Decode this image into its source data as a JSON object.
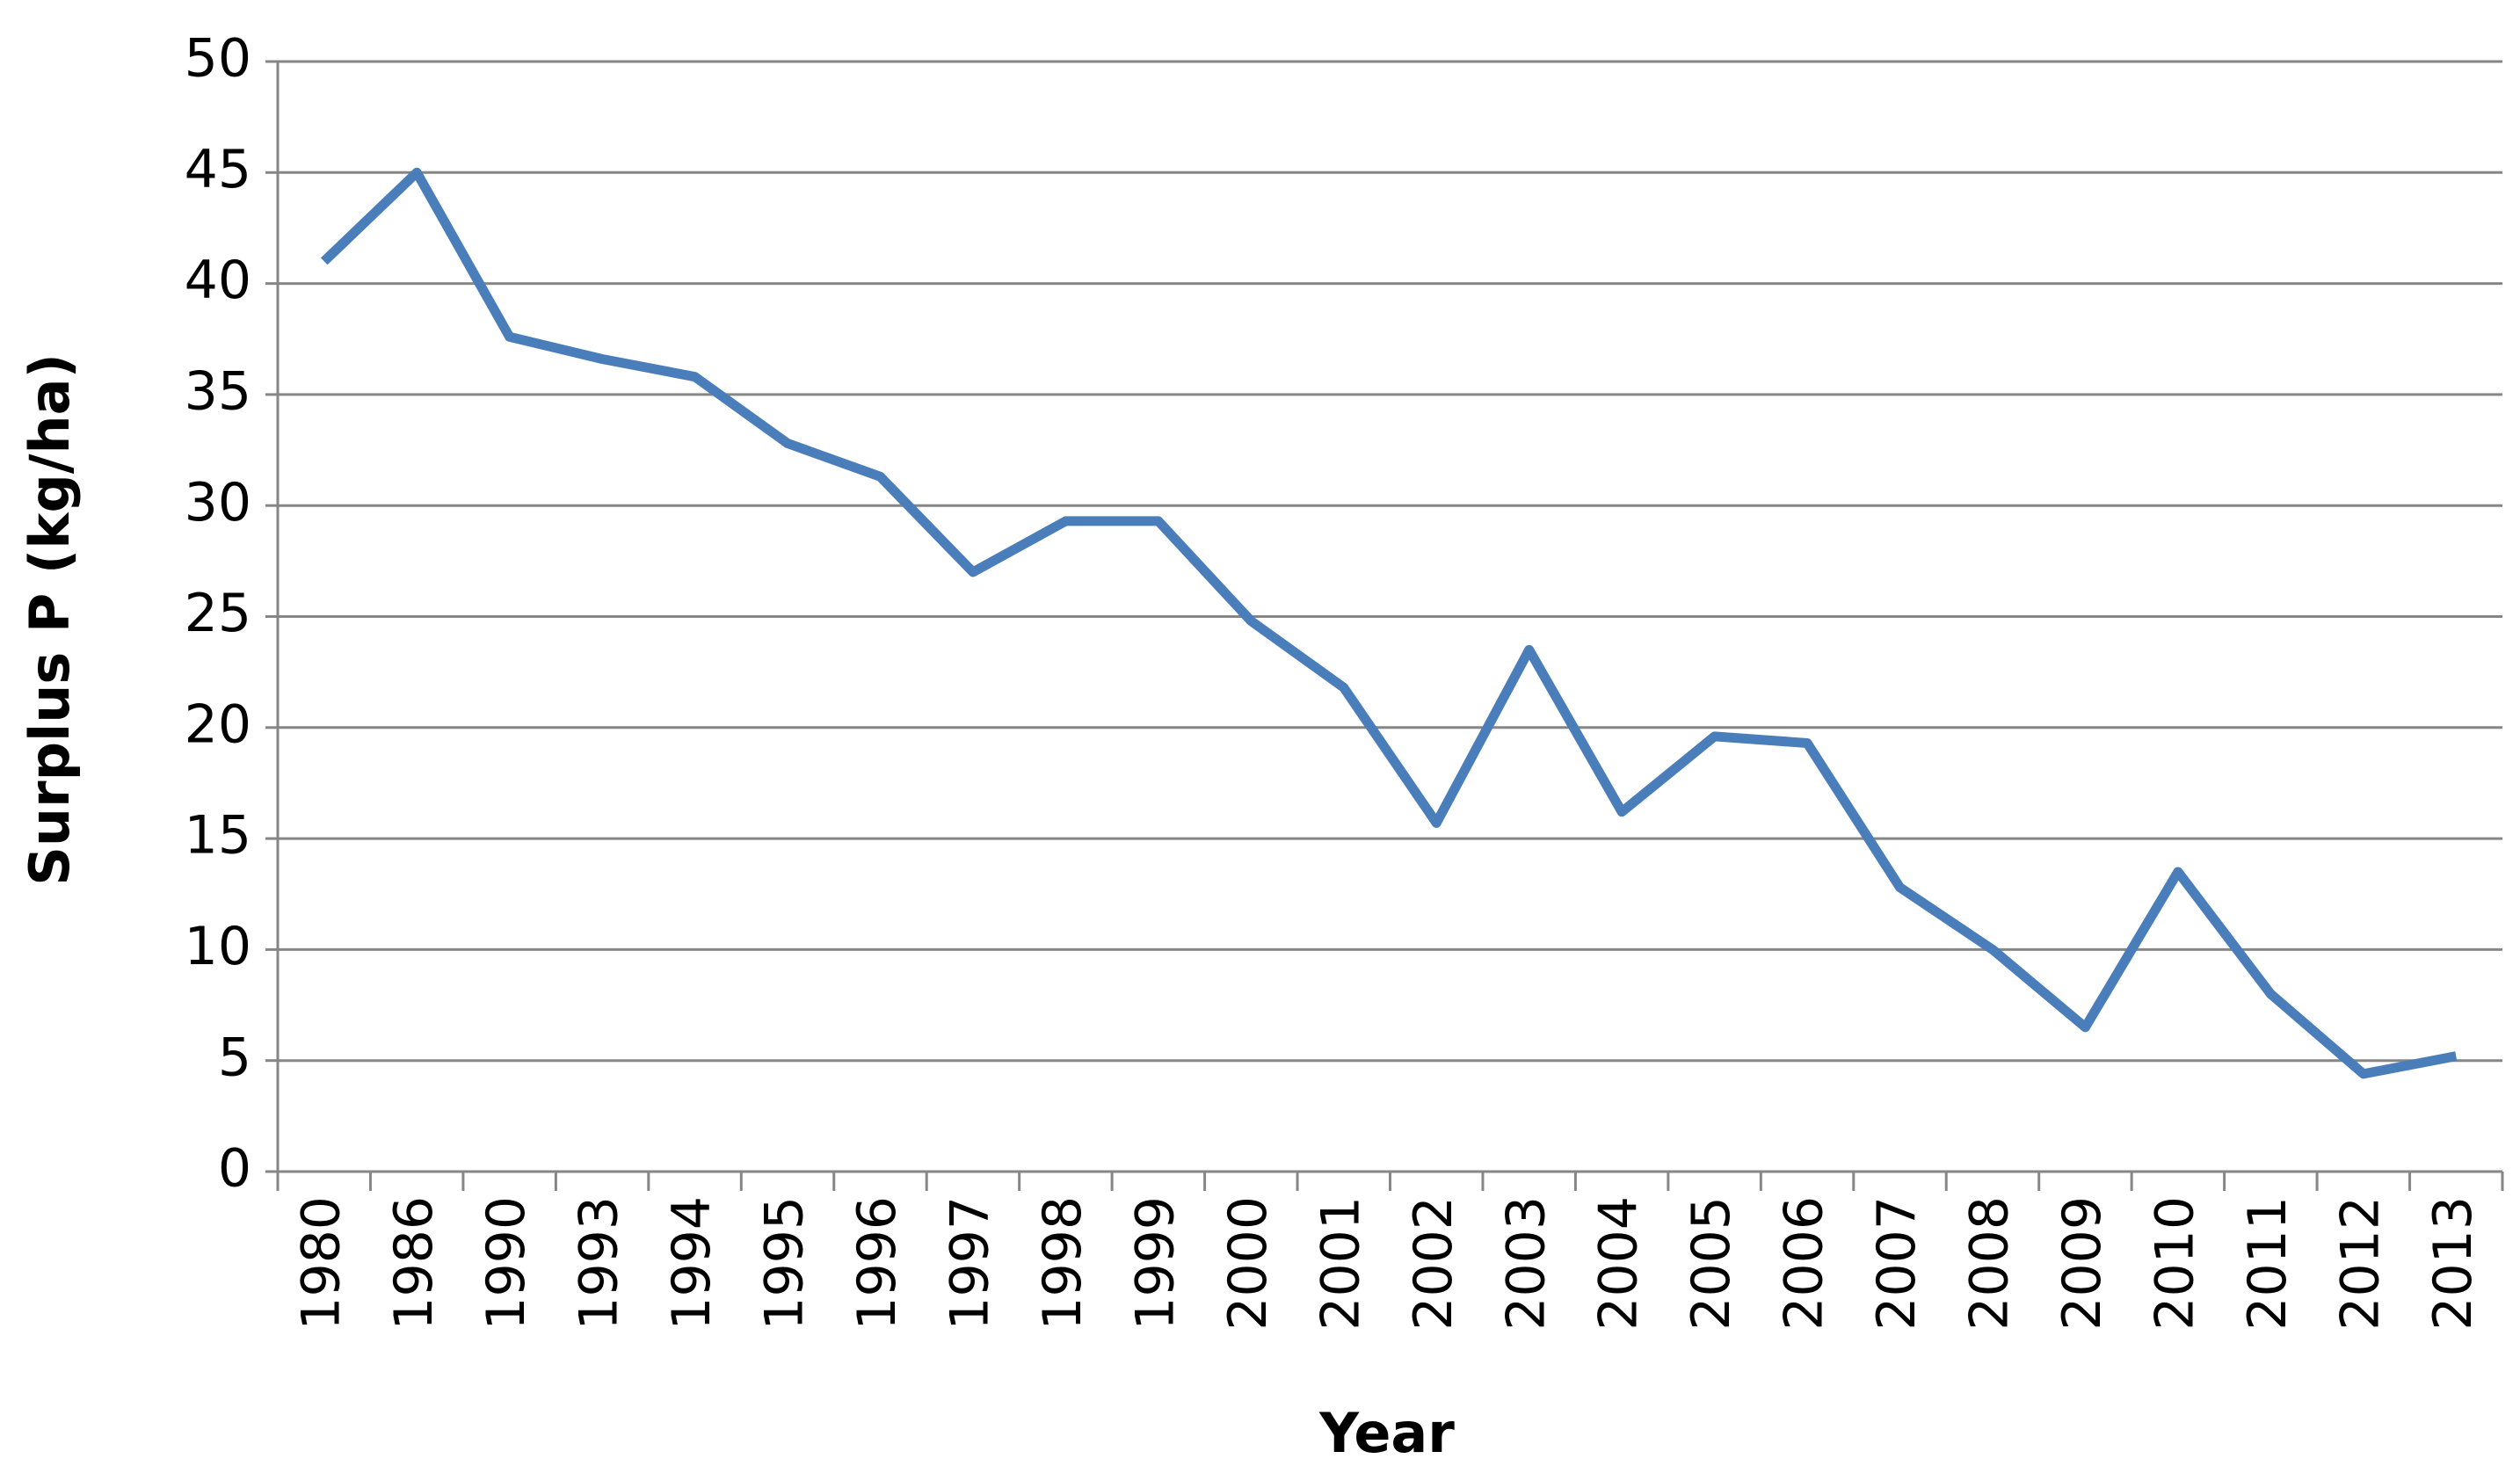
{
  "chart_data": {
    "type": "line",
    "xlabel": "Year",
    "ylabel": "Surplus P (kg/ha)",
    "categories": [
      "1980",
      "1986",
      "1990",
      "1993",
      "1994",
      "1995",
      "1996",
      "1997",
      "1998",
      "1999",
      "2000",
      "2001",
      "2002",
      "2003",
      "2004",
      "2005",
      "2006",
      "2007",
      "2008",
      "2009",
      "2010",
      "2011",
      "2012",
      "2013"
    ],
    "series": [
      {
        "name": "Surplus P",
        "color": "#4a7ebb",
        "values": [
          41,
          45,
          37.6,
          36.6,
          35.8,
          32.8,
          31.3,
          27,
          29.3,
          29.3,
          24.8,
          21.8,
          15.7,
          23.5,
          16.2,
          19.6,
          19.3,
          12.8,
          10,
          6.5,
          13.5,
          8,
          4.4,
          5.2
        ]
      }
    ],
    "ylim": [
      0,
      50
    ],
    "yticks": [
      0,
      5,
      10,
      15,
      20,
      25,
      30,
      35,
      40,
      45,
      50
    ],
    "grid": true
  }
}
